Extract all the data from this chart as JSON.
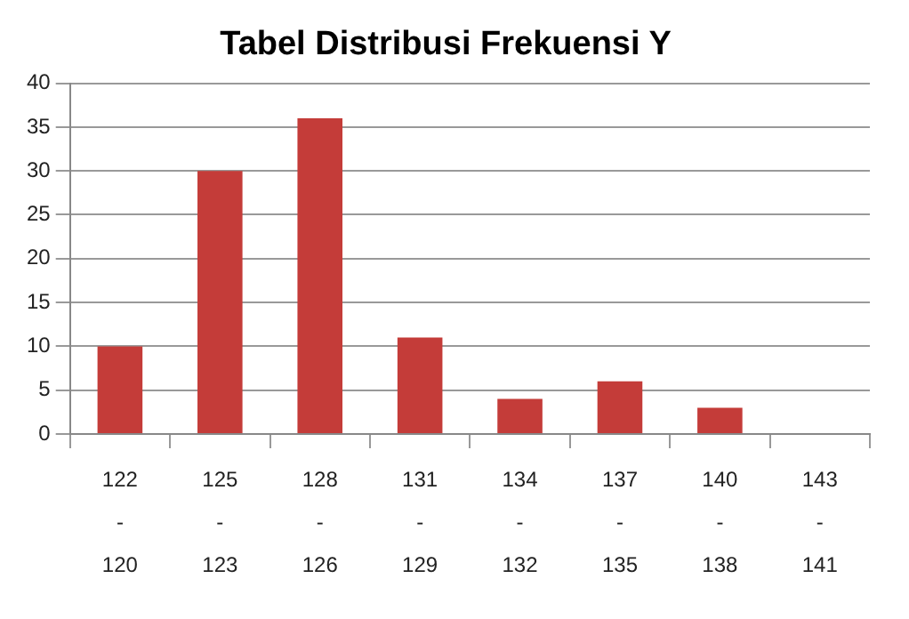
{
  "chart_data": {
    "type": "bar",
    "title": "Tabel Distribusi Frekuensi Y",
    "categories": [
      "122 - 120",
      "125 - 123",
      "128 - 126",
      "131 - 129",
      "134 - 132",
      "137 - 135",
      "140 - 138",
      "143 - 141"
    ],
    "values": [
      10,
      30,
      36,
      11,
      4,
      6,
      3,
      0
    ],
    "color": "#c43c39",
    "ylim": [
      0,
      40
    ],
    "yticks": [
      0,
      5,
      10,
      15,
      20,
      25,
      30,
      35,
      40
    ],
    "grid": "y",
    "legend": false
  }
}
